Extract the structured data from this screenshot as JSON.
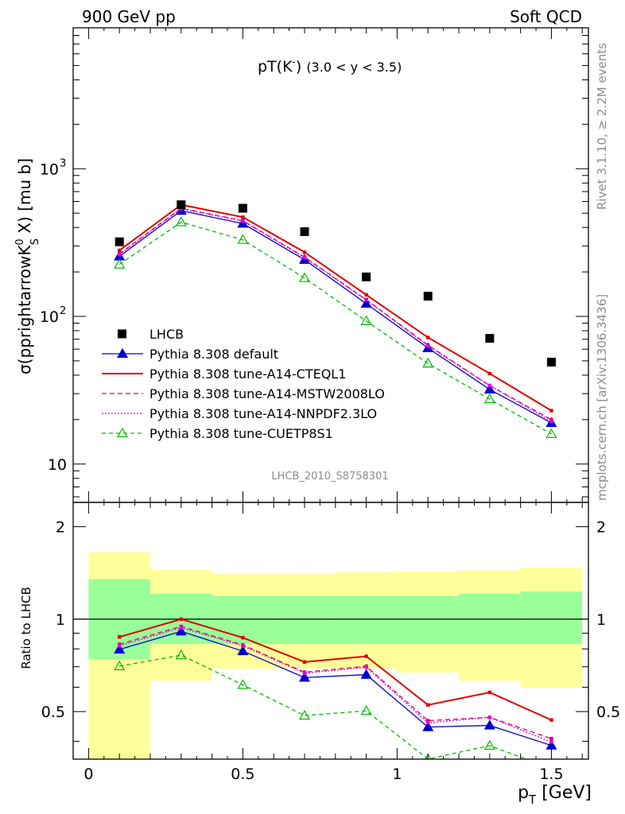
{
  "header": {
    "left": "900 GeV pp",
    "right": "Soft QCD"
  },
  "side_text": {
    "rivet": "Rivet 3.1.10, ≥ 2.2M events",
    "mcplots": "mcplots.cern.ch [arXiv:1306.3436]"
  },
  "chart_data": {
    "type": "line",
    "title_main": "pT(K",
    "title_sup": "-",
    "title_close": ")",
    "title_range": "(3.0 < y < 3.5)",
    "watermark": "LHCB_2010_S8758301",
    "ylabel_pre": "σ(pprightarrowK",
    "ylabel_sup": "0",
    "ylabel_sub": "S",
    "ylabel_post": " X) [mu b]",
    "ratio_ylabel": "Ratio to LHCB",
    "xlabel_main": "p",
    "xlabel_sub": "T",
    "xlabel_unit": " [GeV]",
    "xlim": [
      -0.05,
      1.62
    ],
    "ylim": [
      5.5,
      9000
    ],
    "yscale": "log",
    "ratio_ylim": [
      0.35,
      2.4
    ],
    "ratio_yscale": "log",
    "x_ticks": [
      {
        "v": 0,
        "label": "0"
      },
      {
        "v": 0.5,
        "label": "0.5"
      },
      {
        "v": 1,
        "label": "1"
      },
      {
        "v": 1.5,
        "label": "1.5"
      }
    ],
    "y_ticks": [
      {
        "v": 10,
        "label": "10"
      },
      {
        "v": 100,
        "label": "10",
        "sup": "2"
      },
      {
        "v": 1000,
        "label": "10",
        "sup": "3"
      }
    ],
    "ratio_ticks": [
      {
        "v": 0.5,
        "label": "0.5"
      },
      {
        "v": 1,
        "label": "1"
      },
      {
        "v": 2,
        "label": "2"
      }
    ],
    "bins": [
      0,
      0.2,
      0.4,
      0.6,
      0.8,
      1.0,
      1.2,
      1.4,
      1.6
    ],
    "x": [
      0.1,
      0.3,
      0.5,
      0.7,
      0.9,
      1.1,
      1.3,
      1.5
    ],
    "data": {
      "name": "LHCB",
      "values": [
        320,
        570,
        540,
        375,
        185,
        137,
        71,
        49
      ]
    },
    "band_inner": [
      [
        0.74,
        1.35
      ],
      [
        0.83,
        1.21
      ],
      [
        0.83,
        1.19
      ],
      [
        0.83,
        1.19
      ],
      [
        0.83,
        1.19
      ],
      [
        0.83,
        1.19
      ],
      [
        0.83,
        1.21
      ],
      [
        0.83,
        1.23
      ]
    ],
    "band_outer": [
      [
        0.3,
        1.65
      ],
      [
        0.63,
        1.45
      ],
      [
        0.69,
        1.41
      ],
      [
        0.69,
        1.41
      ],
      [
        0.69,
        1.42
      ],
      [
        0.67,
        1.43
      ],
      [
        0.63,
        1.44
      ],
      [
        0.6,
        1.47
      ]
    ],
    "series": [
      {
        "name": "Pythia 8.308 default",
        "color": "#0000cc",
        "dash": "",
        "marker": "triangle-filled",
        "values": [
          255,
          520,
          425,
          242,
          122,
          61,
          32,
          19
        ]
      },
      {
        "name": "Pythia 8.308 tune-A14-CTEQL1",
        "color": "#e00000",
        "dash": "",
        "marker": "small-square",
        "values": [
          280,
          570,
          470,
          272,
          140,
          72,
          41,
          23
        ]
      },
      {
        "name": "Pythia 8.308 tune-A14-MSTW2008LO",
        "color": "#e0006a",
        "dash": "6,4",
        "marker": "small-square",
        "values": [
          265,
          540,
          445,
          252,
          130,
          64,
          34,
          20
        ]
      },
      {
        "name": "Pythia 8.308 tune-A14-NNPDF2.3LO",
        "color": "#e000e0",
        "dash": "2,2",
        "marker": "small-square",
        "values": [
          262,
          535,
          442,
          250,
          129,
          63,
          34,
          19.5
        ]
      },
      {
        "name": "Pythia 8.308 tune-CUETP8S1",
        "color": "#00bb00",
        "dash": "5,4",
        "marker": "triangle-open",
        "values": [
          225,
          435,
          330,
          182,
          93,
          48,
          27.5,
          16
        ]
      }
    ]
  }
}
